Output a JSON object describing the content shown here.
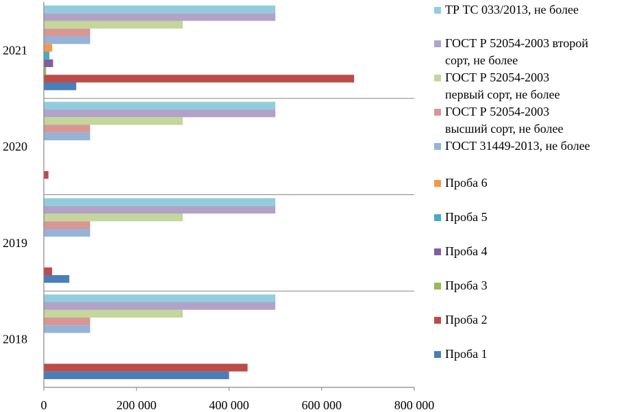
{
  "chart_data": {
    "type": "bar",
    "orientation": "horizontal",
    "categories": [
      "2018",
      "2019",
      "2020",
      "2021"
    ],
    "xlim": [
      0,
      800000
    ],
    "x_ticks": [
      0,
      200000,
      400000,
      600000,
      800000
    ],
    "x_tick_labels": [
      "0",
      "200 000",
      "400 000",
      "600 000",
      "800 000"
    ],
    "grid": false,
    "legend_position": "right",
    "series": [
      {
        "name": "Проба 1",
        "color": "#4a7ebb",
        "values": [
          400000,
          55000,
          0,
          70000
        ]
      },
      {
        "name": "Проба 2",
        "color": "#be4b48",
        "values": [
          440000,
          18000,
          10000,
          670000
        ]
      },
      {
        "name": "Проба 3",
        "color": "#98b954",
        "values": [
          0,
          0,
          0,
          5000
        ]
      },
      {
        "name": "Проба 4",
        "color": "#7d60a0",
        "values": [
          0,
          0,
          0,
          20000
        ]
      },
      {
        "name": "Проба 5",
        "color": "#46aac5",
        "values": [
          0,
          0,
          0,
          12000
        ]
      },
      {
        "name": "Проба 6",
        "color": "#f79646",
        "values": [
          0,
          0,
          0,
          18000
        ]
      },
      {
        "name": "ГОСТ 31449-2013, не более",
        "color": "#95b3d7",
        "values": [
          100000,
          100000,
          100000,
          100000
        ]
      },
      {
        "name": "ГОСТ Р 52054-2003\nвысший сорт, не более",
        "color": "#d99694",
        "values": [
          100000,
          100000,
          100000,
          100000
        ]
      },
      {
        "name": "ГОСТ Р 52054-2003\nпервый сорт, не более",
        "color": "#c3d69b",
        "values": [
          300000,
          300000,
          300000,
          300000
        ]
      },
      {
        "name": "ГОСТ Р 52054-2003 второй\nсорт, не более",
        "color": "#b3a2c7",
        "values": [
          500000,
          500000,
          500000,
          500000
        ]
      },
      {
        "name": "ТР ТС 033/2013, не более",
        "color": "#93cddd",
        "values": [
          500000,
          500000,
          500000,
          500000
        ]
      }
    ]
  }
}
